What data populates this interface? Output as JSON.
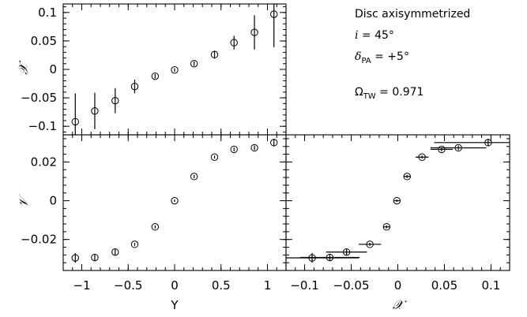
{
  "chart_data": [
    {
      "id": "top-left",
      "type": "scatter",
      "title": "",
      "xlabel": "",
      "ylabel": "𝒳",
      "xlim": [
        -1.2,
        1.2
      ],
      "ylim": [
        -0.115,
        0.115
      ],
      "xticks": [
        -1,
        -0.5,
        0,
        0.5,
        1
      ],
      "yticks": [
        -0.1,
        -0.05,
        0,
        0.05,
        0.1
      ],
      "yticklabels": [
        "−0.1",
        "−0.05",
        "0",
        "0.05",
        "0.1"
      ],
      "show_xticklabels": false,
      "show_yticklabels": true,
      "points": [
        {
          "x": -1.07,
          "y": -0.092,
          "err": 0.05
        },
        {
          "x": -0.86,
          "y": -0.073,
          "err": 0.032
        },
        {
          "x": -0.64,
          "y": -0.055,
          "err": 0.022
        },
        {
          "x": -0.43,
          "y": -0.03,
          "err": 0.012
        },
        {
          "x": -0.21,
          "y": -0.012,
          "err": 0.004
        },
        {
          "x": 0.0,
          "y": -0.001,
          "err": 0.003
        },
        {
          "x": 0.21,
          "y": 0.01,
          "err": 0.004
        },
        {
          "x": 0.43,
          "y": 0.026,
          "err": 0.007
        },
        {
          "x": 0.64,
          "y": 0.047,
          "err": 0.012
        },
        {
          "x": 0.86,
          "y": 0.065,
          "err": 0.03
        },
        {
          "x": 1.07,
          "y": 0.097,
          "err": 0.058
        }
      ]
    },
    {
      "id": "bottom-left",
      "type": "scatter",
      "title": "",
      "xlabel": "Y",
      "ylabel": "𝒱",
      "xlim": [
        -1.2,
        1.2
      ],
      "ylim": [
        -0.036,
        0.034
      ],
      "xticks": [
        -1,
        -0.5,
        0,
        0.5,
        1
      ],
      "xticklabels": [
        "−1",
        "−0.5",
        "0",
        "0.5",
        "1"
      ],
      "yticks": [
        -0.02,
        0,
        0.02
      ],
      "yticklabels": [
        "−0.02",
        "0",
        "0.02"
      ],
      "show_xticklabels": true,
      "show_yticklabels": true,
      "points": [
        {
          "x": -1.07,
          "y": -0.0295,
          "err": 0.0025
        },
        {
          "x": -0.86,
          "y": -0.0293,
          "err": 0.0015
        },
        {
          "x": -0.64,
          "y": -0.0265,
          "err": 0.0015
        },
        {
          "x": -0.43,
          "y": -0.0225,
          "err": 0.0008
        },
        {
          "x": -0.21,
          "y": -0.0135,
          "err": 0.0008
        },
        {
          "x": 0.0,
          "y": 0.0,
          "err": 0.0006
        },
        {
          "x": 0.21,
          "y": 0.0125,
          "err": 0.0008
        },
        {
          "x": 0.43,
          "y": 0.0225,
          "err": 0.0008
        },
        {
          "x": 0.64,
          "y": 0.0265,
          "err": 0.001
        },
        {
          "x": 0.86,
          "y": 0.0273,
          "err": 0.0012
        },
        {
          "x": 1.07,
          "y": 0.03,
          "err": 0.002
        }
      ]
    },
    {
      "id": "bottom-right",
      "type": "scatter",
      "title": "",
      "xlabel": "𝒳",
      "ylabel": "",
      "xlim": [
        -0.12,
        0.12
      ],
      "ylim": [
        -0.036,
        0.034
      ],
      "xticks": [
        -0.1,
        -0.05,
        0,
        0.05,
        0.1
      ],
      "xticklabels": [
        "−0.1",
        "−0.05",
        "0",
        "0.05",
        "0.1"
      ],
      "yticks": [
        -0.02,
        0,
        0.02
      ],
      "show_xticklabels": true,
      "show_yticklabels": false,
      "points": [
        {
          "x": -0.092,
          "y": -0.0295,
          "xerr": 0.05,
          "yerr": 0.0025
        },
        {
          "x": -0.073,
          "y": -0.0293,
          "xerr": 0.032,
          "yerr": 0.0015
        },
        {
          "x": -0.055,
          "y": -0.0265,
          "xerr": 0.022,
          "yerr": 0.0015
        },
        {
          "x": -0.03,
          "y": -0.0225,
          "xerr": 0.012,
          "yerr": 0.0008
        },
        {
          "x": -0.012,
          "y": -0.0135,
          "xerr": 0.004,
          "yerr": 0.0008
        },
        {
          "x": -0.001,
          "y": 0.0,
          "xerr": 0.003,
          "yerr": 0.0006
        },
        {
          "x": 0.01,
          "y": 0.0125,
          "xerr": 0.004,
          "yerr": 0.0008
        },
        {
          "x": 0.026,
          "y": 0.0225,
          "xerr": 0.007,
          "yerr": 0.0008
        },
        {
          "x": 0.047,
          "y": 0.0265,
          "xerr": 0.012,
          "yerr": 0.001
        },
        {
          "x": 0.065,
          "y": 0.0273,
          "xerr": 0.03,
          "yerr": 0.0012
        },
        {
          "x": 0.097,
          "y": 0.03,
          "xerr": 0.058,
          "yerr": 0.002
        }
      ]
    }
  ],
  "annotations": {
    "line1": "Disc axisymmetrized",
    "line2_symbol": "i",
    "line2_value": " = 45°",
    "line3_symbol": "δ",
    "line3_sub": "PA",
    "line3_value": " = +5°",
    "line4_symbol": "Ω",
    "line4_sub": "TW",
    "line4_value": " = 0.971"
  }
}
